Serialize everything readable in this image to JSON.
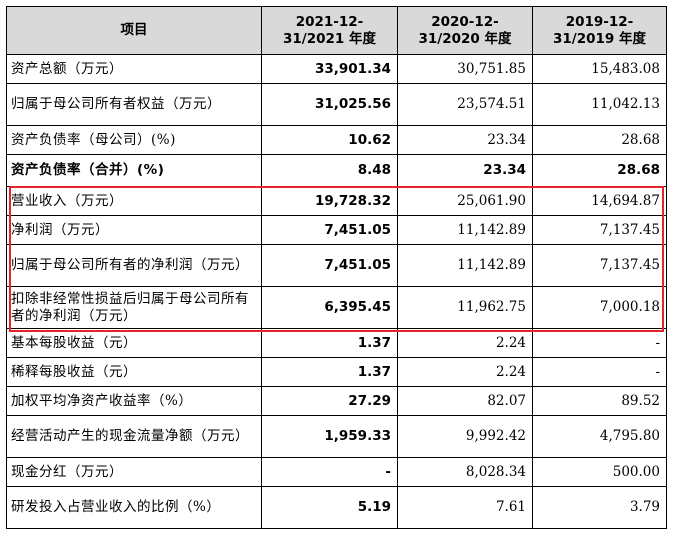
{
  "table": {
    "headers": [
      "项目",
      "2021-12-31/2021 年度",
      "2020-12-31/2020 年度",
      "2019-12-31/2019 年度"
    ],
    "rows": [
      {
        "label": "资产总额（万元）",
        "v2021": "33,901.34",
        "v2020": "30,751.85",
        "v2019": "15,483.08"
      },
      {
        "label": "归属于母公司所有者权益（万元）",
        "v2021": "31,025.56",
        "v2020": "23,574.51",
        "v2019": "11,042.13"
      },
      {
        "label": "资产负债率（母公司）(%)",
        "v2021": "10.62",
        "v2020": "23.34",
        "v2019": "28.68"
      },
      {
        "label": "资产负债率（合并）(%)",
        "v2021": "8.48",
        "v2020": "23.34",
        "v2019": "28.68"
      },
      {
        "label": "营业收入（万元）",
        "v2021": "19,728.32",
        "v2020": "25,061.90",
        "v2019": "14,694.87"
      },
      {
        "label": "净利润（万元）",
        "v2021": "7,451.05",
        "v2020": "11,142.89",
        "v2019": "7,137.45"
      },
      {
        "label": "归属于母公司所有者的净利润（万元）",
        "v2021": "7,451.05",
        "v2020": "11,142.89",
        "v2019": "7,137.45"
      },
      {
        "label": "扣除非经常性损益后归属于母公司所有者的净利润（万元）",
        "v2021": "6,395.45",
        "v2020": "11,962.75",
        "v2019": "7,000.18"
      },
      {
        "label": "基本每股收益（元）",
        "v2021": "1.37",
        "v2020": "2.24",
        "v2019": "-"
      },
      {
        "label": "稀释每股收益（元）",
        "v2021": "1.37",
        "v2020": "2.24",
        "v2019": "-"
      },
      {
        "label": "加权平均净资产收益率（%）",
        "v2021": "27.29",
        "v2020": "82.07",
        "v2019": "89.52"
      },
      {
        "label": "经营活动产生的现金流量净额（万元）",
        "v2021": "1,959.33",
        "v2020": "9,992.42",
        "v2019": "4,795.80"
      },
      {
        "label": "现金分红（万元）",
        "v2021": "-",
        "v2020": "8,028.34",
        "v2019": "500.00"
      },
      {
        "label": "研发投入占营业收入的比例（%）",
        "v2021": "5.19",
        "v2020": "7.61",
        "v2019": "3.79"
      }
    ]
  },
  "colors": {
    "header_bg": "#d9d9d9",
    "highlight_border": "#e3262d"
  }
}
